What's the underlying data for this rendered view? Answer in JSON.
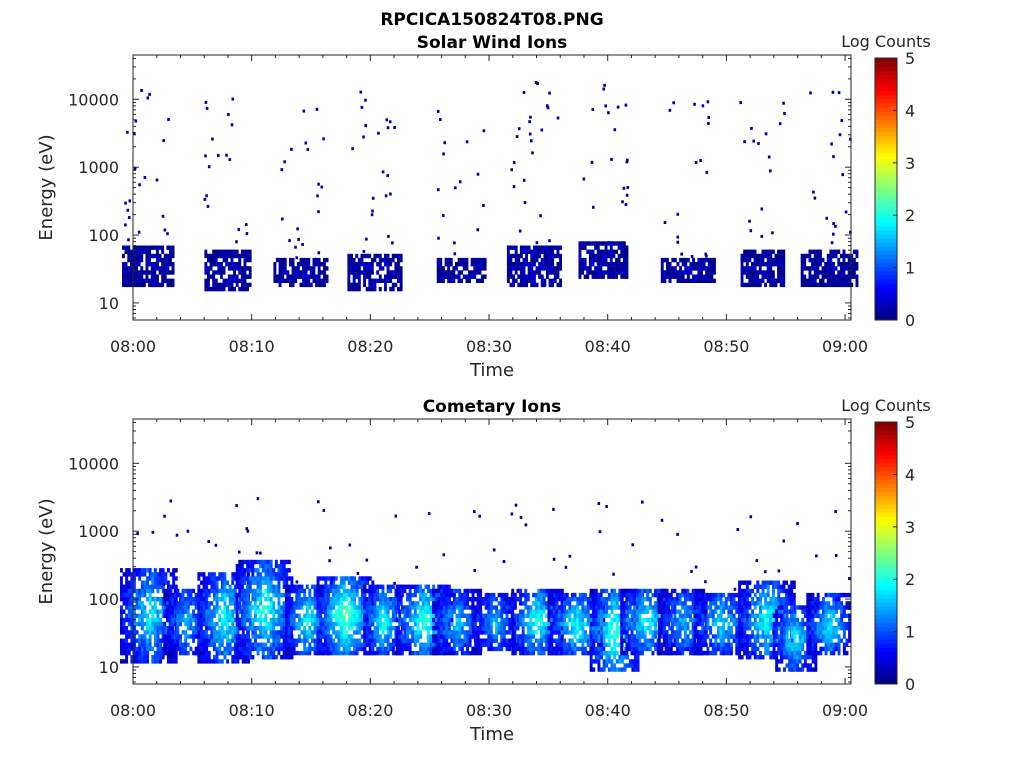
{
  "figure_title": "RPCICA150824T08.PNG",
  "colors": {
    "axis": "#262626",
    "colormap": "jet",
    "background": "#ffffff"
  },
  "chart_data": [
    {
      "type": "heatmap",
      "title": "Solar Wind Ions",
      "xlabel": "Time",
      "ylabel": "Energy (eV)",
      "x_ticks": [
        "08:00",
        "08:10",
        "08:20",
        "08:30",
        "08:40",
        "08:50",
        "09:00"
      ],
      "x_range_minutes": [
        0,
        60.5
      ],
      "y_scale": "log",
      "y_range": [
        5.6,
        45000
      ],
      "y_ticks": [
        "10",
        "100",
        "1000",
        "10000"
      ],
      "colorbar": {
        "label": "Log Counts",
        "min": 0,
        "max": 5,
        "ticks": [
          "0",
          "1",
          "2",
          "3",
          "4",
          "5"
        ]
      },
      "bursts": [
        {
          "t": 1.2,
          "lo": 18,
          "hi": 70,
          "level": 0.25,
          "sparse": 6,
          "scatter": 22
        },
        {
          "t": 7.9,
          "lo": 15,
          "hi": 60,
          "level": 0.2,
          "sparse": 5,
          "scatter": 18
        },
        {
          "t": 14.1,
          "lo": 17,
          "hi": 48,
          "level": 0.25,
          "sparse": 5,
          "scatter": 20
        },
        {
          "t": 20.3,
          "lo": 15,
          "hi": 55,
          "level": 0.25,
          "sparse": 6,
          "scatter": 22
        },
        {
          "t": 27.6,
          "lo": 20,
          "hi": 45,
          "level": 0.2,
          "sparse": 6,
          "scatter": 16
        },
        {
          "t": 33.8,
          "lo": 18,
          "hi": 75,
          "level": 0.3,
          "sparse": 6,
          "scatter": 24
        },
        {
          "t": 39.6,
          "lo": 22,
          "hi": 80,
          "level": 0.25,
          "sparse": 6,
          "scatter": 20
        },
        {
          "t": 46.7,
          "lo": 20,
          "hi": 45,
          "level": 0.2,
          "sparse": 5,
          "scatter": 18
        },
        {
          "t": 53.0,
          "lo": 18,
          "hi": 60,
          "level": 0.25,
          "sparse": 6,
          "scatter": 16
        },
        {
          "t": 58.6,
          "lo": 18,
          "hi": 60,
          "level": 0.2,
          "sparse": 5,
          "scatter": 18
        }
      ]
    },
    {
      "type": "heatmap",
      "title": "Cometary Ions",
      "xlabel": "Time",
      "ylabel": "Energy (eV)",
      "x_ticks": [
        "08:00",
        "08:10",
        "08:20",
        "08:30",
        "08:40",
        "08:50",
        "09:00"
      ],
      "x_range_minutes": [
        0,
        60.5
      ],
      "y_scale": "log",
      "y_range": [
        5.6,
        45000
      ],
      "y_ticks": [
        "10",
        "100",
        "1000",
        "10000"
      ],
      "colorbar": {
        "label": "Log Counts",
        "min": 0,
        "max": 5,
        "ticks": [
          "0",
          "1",
          "2",
          "3",
          "4",
          "5"
        ]
      },
      "bursts": [
        {
          "t": 1.3,
          "lo": 12,
          "hi": 300,
          "level": 1.8,
          "sparse": 4,
          "scatter": 4
        },
        {
          "t": 4.4,
          "lo": 14,
          "hi": 150,
          "level": 1.5,
          "sparse": 3,
          "scatter": 3
        },
        {
          "t": 7.6,
          "lo": 12,
          "hi": 250,
          "level": 1.9,
          "sparse": 4,
          "scatter": 5
        },
        {
          "t": 11.0,
          "lo": 13,
          "hi": 380,
          "level": 2.0,
          "sparse": 4,
          "scatter": 4
        },
        {
          "t": 14.6,
          "lo": 14,
          "hi": 160,
          "level": 1.9,
          "sparse": 3,
          "scatter": 3
        },
        {
          "t": 17.8,
          "lo": 15,
          "hi": 220,
          "level": 2.3,
          "sparse": 4,
          "scatter": 4
        },
        {
          "t": 21.0,
          "lo": 14,
          "hi": 160,
          "level": 1.9,
          "sparse": 3,
          "scatter": 3
        },
        {
          "t": 24.5,
          "lo": 14,
          "hi": 160,
          "level": 2.1,
          "sparse": 3,
          "scatter": 3
        },
        {
          "t": 27.2,
          "lo": 15,
          "hi": 140,
          "level": 1.6,
          "sparse": 3,
          "scatter": 3
        },
        {
          "t": 30.4,
          "lo": 17,
          "hi": 120,
          "level": 1.5,
          "sparse": 3,
          "scatter": 3
        },
        {
          "t": 34.0,
          "lo": 15,
          "hi": 150,
          "level": 2.0,
          "sparse": 4,
          "scatter": 4
        },
        {
          "t": 37.3,
          "lo": 14,
          "hi": 120,
          "level": 1.9,
          "sparse": 3,
          "scatter": 3
        },
        {
          "t": 40.5,
          "lo": 8,
          "hi": 140,
          "level": 2.2,
          "sparse": 3,
          "scatter": 4
        },
        {
          "t": 43.2,
          "lo": 15,
          "hi": 150,
          "level": 1.9,
          "sparse": 3,
          "scatter": 3
        },
        {
          "t": 46.3,
          "lo": 14,
          "hi": 150,
          "level": 1.5,
          "sparse": 3,
          "scatter": 3
        },
        {
          "t": 49.5,
          "lo": 15,
          "hi": 130,
          "level": 1.7,
          "sparse": 3,
          "scatter": 3
        },
        {
          "t": 53.3,
          "lo": 13,
          "hi": 200,
          "level": 1.9,
          "sparse": 4,
          "scatter": 4
        },
        {
          "t": 55.7,
          "lo": 8,
          "hi": 80,
          "level": 1.8,
          "sparse": 3,
          "scatter": 3
        },
        {
          "t": 58.6,
          "lo": 14,
          "hi": 120,
          "level": 1.8,
          "sparse": 3,
          "scatter": 3
        }
      ]
    }
  ]
}
